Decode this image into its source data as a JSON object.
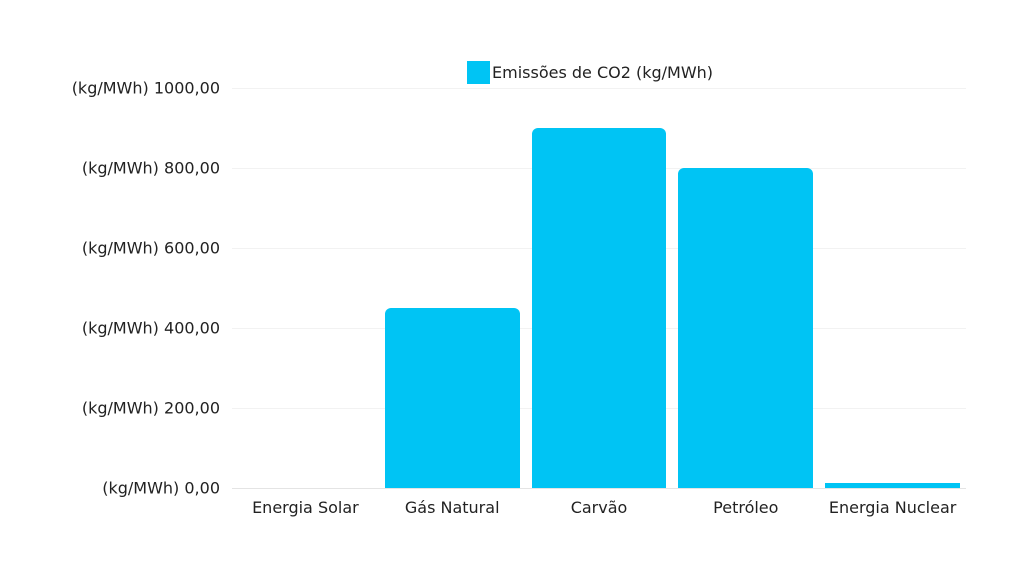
{
  "chart_data": {
    "type": "bar",
    "title": "",
    "xlabel": "",
    "ylabel": "",
    "categories": [
      "Energia Solar",
      "Gás Natural",
      "Carvão",
      "Petróleo",
      "Energia Nuclear"
    ],
    "series": [
      {
        "name": "Emissões de CO2 (kg/MWh)",
        "values": [
          0,
          450,
          900,
          800,
          12
        ],
        "color": "#00c4f4"
      }
    ],
    "ylim": [
      0,
      1000
    ],
    "yticks": [
      0,
      200,
      400,
      600,
      800,
      1000
    ],
    "ytick_labels": [
      "(kg/MWh) 0,00",
      "(kg/MWh) 200,00",
      "(kg/MWh) 400,00",
      "(kg/MWh) 600,00",
      "(kg/MWh) 800,00",
      "(kg/MWh) 1000,00"
    ],
    "grid": true,
    "legend_position": "top"
  },
  "legend": {
    "label": "Emissões de CO2 (kg/MWh)",
    "color": "#00c4f4"
  }
}
